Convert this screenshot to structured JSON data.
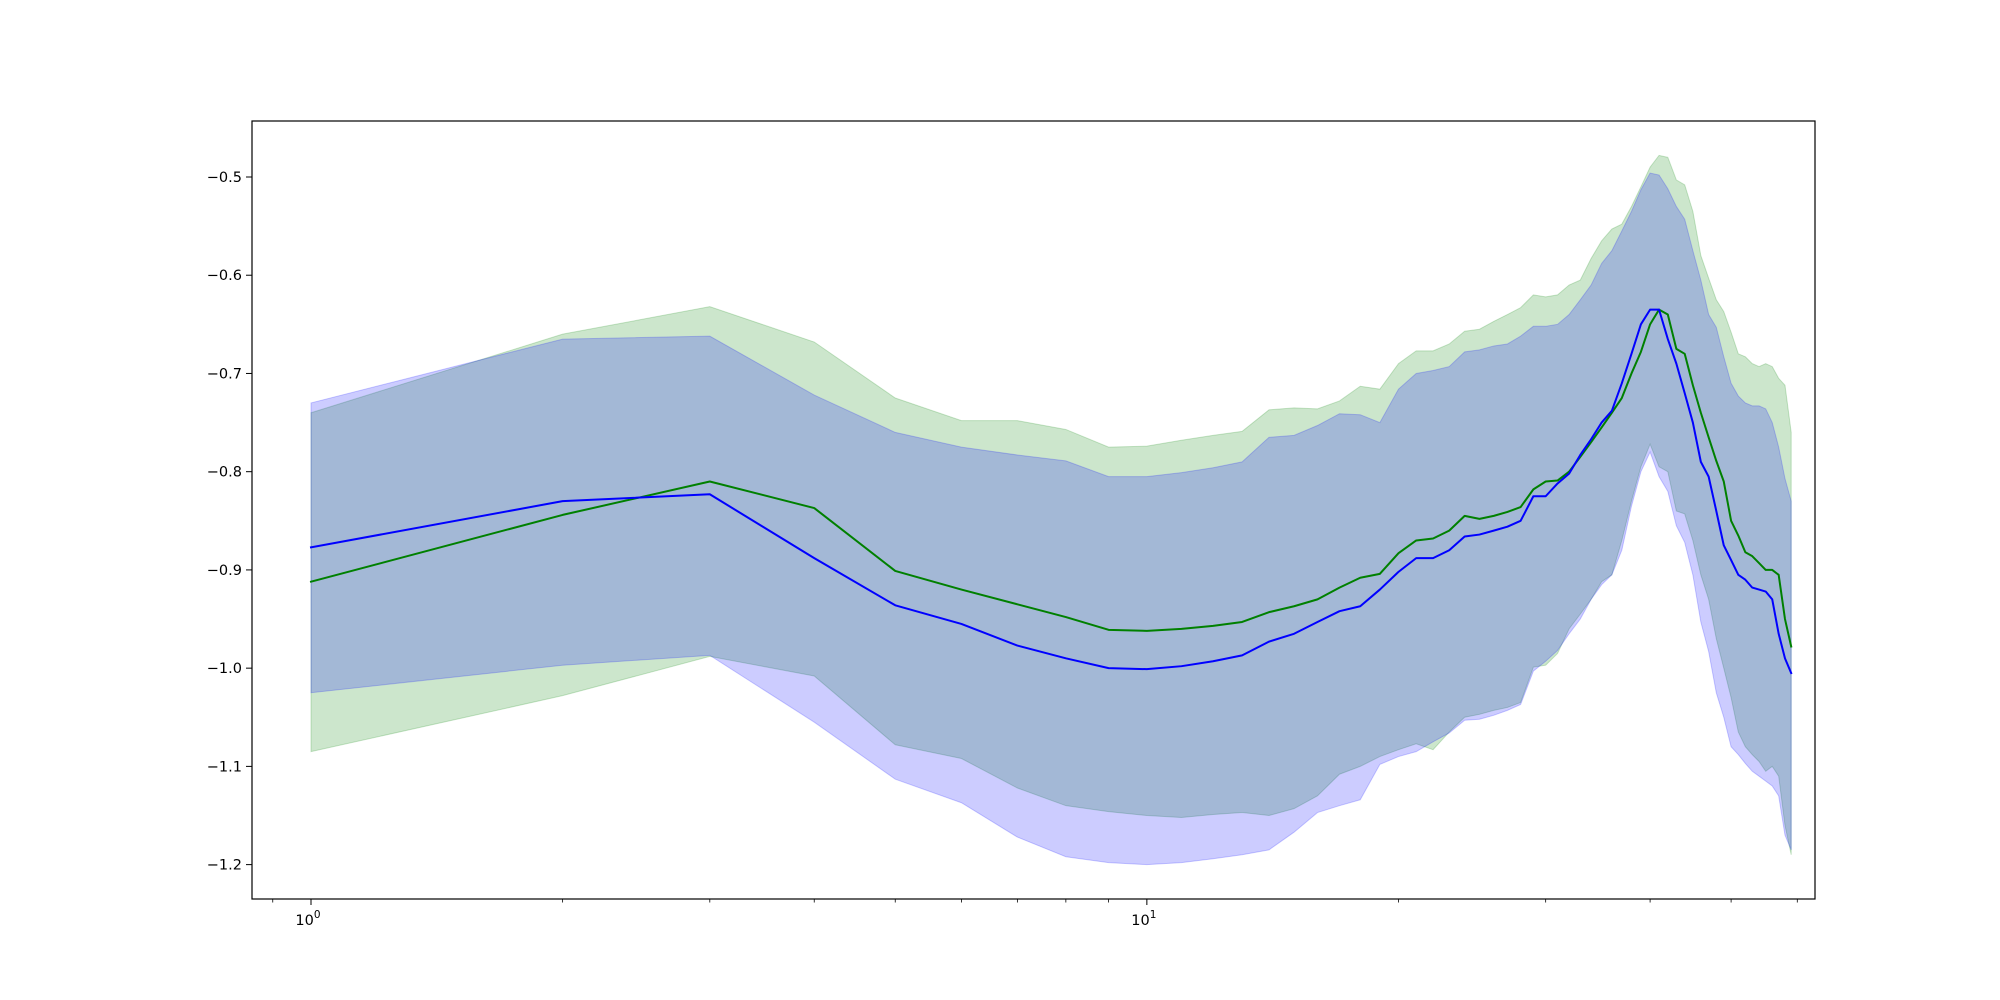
{
  "chart_data": {
    "type": "line",
    "title": "",
    "xlabel": "",
    "ylabel": "",
    "x_scale": "log",
    "xlim": [
      0.85,
      63
    ],
    "ylim": [
      -1.235,
      -0.443
    ],
    "grid": false,
    "legend": "none",
    "x_ticks": [
      {
        "value": 1,
        "base": "10",
        "exp": "0"
      },
      {
        "value": 10,
        "base": "10",
        "exp": "1"
      }
    ],
    "y_ticks": [
      {
        "value": -0.5,
        "label": "−0.5"
      },
      {
        "value": -0.6,
        "label": "−0.6"
      },
      {
        "value": -0.7,
        "label": "−0.7"
      },
      {
        "value": -0.8,
        "label": "−0.8"
      },
      {
        "value": -0.9,
        "label": "−0.9"
      },
      {
        "value": -1.0,
        "label": "−1.0"
      },
      {
        "value": -1.1,
        "label": "−1.1"
      },
      {
        "value": -1.2,
        "label": "−1.2"
      }
    ],
    "series": [
      {
        "color": "#008000",
        "band_color": "#008000",
        "band_opacity": 0.2,
        "x": [
          1,
          2,
          3,
          4,
          5,
          6,
          7,
          8,
          9,
          10,
          11,
          12,
          13,
          14,
          15,
          16,
          17,
          18,
          19,
          20,
          21,
          22,
          23,
          24,
          25,
          26,
          27,
          28,
          29,
          30,
          31,
          32,
          33,
          34,
          35,
          36,
          37,
          38,
          39,
          40,
          41,
          42,
          43,
          44,
          45,
          46,
          47,
          48,
          49,
          50,
          51,
          52,
          53,
          54,
          55,
          56,
          57,
          58,
          59
        ],
        "y": [
          -0.912,
          -0.844,
          -0.81,
          -0.837,
          -0.901,
          -0.92,
          -0.935,
          -0.948,
          -0.961,
          -0.962,
          -0.96,
          -0.957,
          -0.953,
          -0.943,
          -0.937,
          -0.93,
          -0.918,
          -0.908,
          -0.904,
          -0.883,
          -0.87,
          -0.868,
          -0.86,
          -0.845,
          -0.848,
          -0.845,
          -0.841,
          -0.836,
          -0.818,
          -0.81,
          -0.809,
          -0.8,
          -0.785,
          -0.77,
          -0.755,
          -0.74,
          -0.725,
          -0.7,
          -0.678,
          -0.65,
          -0.635,
          -0.64,
          -0.675,
          -0.68,
          -0.712,
          -0.74,
          -0.765,
          -0.789,
          -0.81,
          -0.85,
          -0.865,
          -0.882,
          -0.886,
          -0.893,
          -0.9,
          -0.9,
          -0.905,
          -0.95,
          -0.978
        ],
        "upper": [
          -0.74,
          -0.66,
          -0.632,
          -0.668,
          -0.725,
          -0.748,
          -0.748,
          -0.757,
          -0.775,
          -0.774,
          -0.768,
          -0.763,
          -0.759,
          -0.737,
          -0.735,
          -0.736,
          -0.728,
          -0.713,
          -0.716,
          -0.69,
          -0.677,
          -0.677,
          -0.67,
          -0.657,
          -0.655,
          -0.647,
          -0.64,
          -0.633,
          -0.62,
          -0.622,
          -0.62,
          -0.61,
          -0.605,
          -0.583,
          -0.565,
          -0.553,
          -0.548,
          -0.53,
          -0.51,
          -0.49,
          -0.478,
          -0.48,
          -0.503,
          -0.508,
          -0.535,
          -0.58,
          -0.603,
          -0.625,
          -0.637,
          -0.658,
          -0.68,
          -0.683,
          -0.69,
          -0.693,
          -0.69,
          -0.693,
          -0.705,
          -0.712,
          -0.76
        ],
        "lower": [
          -1.085,
          -1.028,
          -0.988,
          -1.008,
          -1.078,
          -1.092,
          -1.122,
          -1.14,
          -1.146,
          -1.15,
          -1.152,
          -1.149,
          -1.147,
          -1.15,
          -1.143,
          -1.13,
          -1.108,
          -1.1,
          -1.09,
          -1.083,
          -1.077,
          -1.083,
          -1.065,
          -1.05,
          -1.047,
          -1.043,
          -1.04,
          -1.035,
          -0.999,
          -0.997,
          -0.985,
          -0.96,
          -0.945,
          -0.93,
          -0.912,
          -0.905,
          -0.87,
          -0.83,
          -0.795,
          -0.772,
          -0.795,
          -0.8,
          -0.84,
          -0.843,
          -0.87,
          -0.905,
          -0.93,
          -0.97,
          -1.0,
          -1.03,
          -1.065,
          -1.08,
          -1.088,
          -1.095,
          -1.105,
          -1.1,
          -1.11,
          -1.16,
          -1.19
        ]
      },
      {
        "color": "#0000ff",
        "band_color": "#0000ff",
        "band_opacity": 0.2,
        "x": [
          1,
          2,
          3,
          4,
          5,
          6,
          7,
          8,
          9,
          10,
          11,
          12,
          13,
          14,
          15,
          16,
          17,
          18,
          19,
          20,
          21,
          22,
          23,
          24,
          25,
          26,
          27,
          28,
          29,
          30,
          31,
          32,
          33,
          34,
          35,
          36,
          37,
          38,
          39,
          40,
          41,
          42,
          43,
          44,
          45,
          46,
          47,
          48,
          49,
          50,
          51,
          52,
          53,
          54,
          55,
          56,
          57,
          58,
          59
        ],
        "y": [
          -0.877,
          -0.83,
          -0.823,
          -0.888,
          -0.936,
          -0.955,
          -0.977,
          -0.99,
          -1.0,
          -1.001,
          -0.998,
          -0.993,
          -0.987,
          -0.973,
          -0.965,
          -0.953,
          -0.942,
          -0.937,
          -0.92,
          -0.902,
          -0.888,
          -0.888,
          -0.88,
          -0.866,
          -0.864,
          -0.86,
          -0.856,
          -0.85,
          -0.825,
          -0.825,
          -0.812,
          -0.802,
          -0.783,
          -0.767,
          -0.75,
          -0.738,
          -0.71,
          -0.68,
          -0.65,
          -0.635,
          -0.635,
          -0.665,
          -0.69,
          -0.72,
          -0.75,
          -0.79,
          -0.805,
          -0.84,
          -0.875,
          -0.89,
          -0.905,
          -0.91,
          -0.918,
          -0.92,
          -0.922,
          -0.93,
          -0.965,
          -0.99,
          -1.005
        ],
        "upper": [
          -0.73,
          -0.665,
          -0.662,
          -0.722,
          -0.76,
          -0.775,
          -0.783,
          -0.789,
          -0.805,
          -0.805,
          -0.801,
          -0.796,
          -0.79,
          -0.765,
          -0.763,
          -0.753,
          -0.741,
          -0.742,
          -0.75,
          -0.716,
          -0.7,
          -0.697,
          -0.693,
          -0.678,
          -0.676,
          -0.672,
          -0.67,
          -0.662,
          -0.652,
          -0.652,
          -0.65,
          -0.64,
          -0.625,
          -0.61,
          -0.588,
          -0.575,
          -0.555,
          -0.535,
          -0.513,
          -0.496,
          -0.498,
          -0.512,
          -0.53,
          -0.543,
          -0.575,
          -0.605,
          -0.64,
          -0.653,
          -0.683,
          -0.71,
          -0.723,
          -0.73,
          -0.733,
          -0.733,
          -0.736,
          -0.75,
          -0.775,
          -0.807,
          -0.83
        ],
        "lower": [
          -1.025,
          -0.997,
          -0.987,
          -1.055,
          -1.113,
          -1.137,
          -1.172,
          -1.192,
          -1.198,
          -1.2,
          -1.198,
          -1.194,
          -1.19,
          -1.185,
          -1.167,
          -1.147,
          -1.14,
          -1.134,
          -1.098,
          -1.09,
          -1.085,
          -1.075,
          -1.066,
          -1.053,
          -1.052,
          -1.048,
          -1.043,
          -1.037,
          -1.003,
          -0.993,
          -0.982,
          -0.965,
          -0.95,
          -0.93,
          -0.915,
          -0.905,
          -0.88,
          -0.835,
          -0.8,
          -0.78,
          -0.805,
          -0.82,
          -0.855,
          -0.872,
          -0.905,
          -0.953,
          -0.983,
          -1.025,
          -1.05,
          -1.08,
          -1.088,
          -1.097,
          -1.105,
          -1.11,
          -1.115,
          -1.12,
          -1.13,
          -1.17,
          -1.185
        ]
      }
    ]
  }
}
